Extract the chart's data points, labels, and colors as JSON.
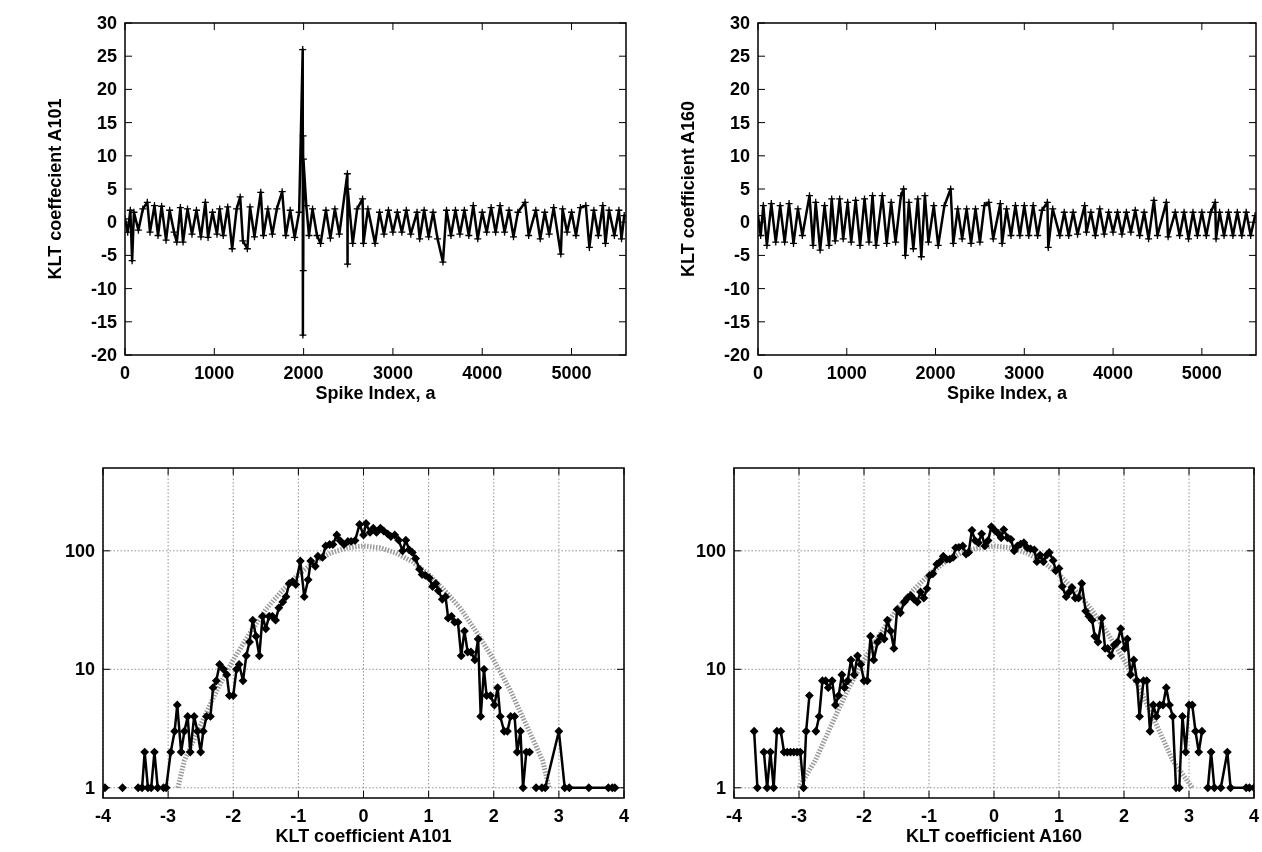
{
  "chart_data": [
    {
      "type": "line",
      "ylabel": "KLT coeffecient A101",
      "xlabel": "Spike Index, a",
      "xlim": [
        0,
        5610
      ],
      "ylim": [
        -20,
        30
      ],
      "xticks": [
        0,
        1000,
        2000,
        3000,
        4000,
        5000
      ],
      "yticks": [
        -20,
        -15,
        -10,
        -5,
        0,
        5,
        10,
        15,
        20,
        25,
        30
      ],
      "grid": false,
      "series": [
        {
          "color": "#000000",
          "marker": "cross",
          "line_style": "solid",
          "x": [
            0,
            30,
            60,
            80,
            100,
            150,
            200,
            250,
            280,
            330,
            370,
            410,
            460,
            500,
            550,
            580,
            620,
            650,
            700,
            750,
            800,
            850,
            900,
            930,
            980,
            1030,
            1060,
            1100,
            1150,
            1200,
            1250,
            1290,
            1320,
            1370,
            1400,
            1450,
            1520,
            1550,
            1600,
            1650,
            1700,
            1760,
            1800,
            1850,
            1900,
            1950,
            1990,
            1992,
            1994,
            1996,
            1998,
            2030,
            2060,
            2100,
            2150,
            2190,
            2250,
            2300,
            2350,
            2400,
            2490,
            2492,
            2494,
            2550,
            2600,
            2660,
            2670,
            2720,
            2800,
            2850,
            2900,
            2950,
            3000,
            3050,
            3100,
            3150,
            3200,
            3270,
            3300,
            3350,
            3400,
            3450,
            3500,
            3560,
            3600,
            3650,
            3700,
            3750,
            3800,
            3850,
            3900,
            3950,
            4000,
            4050,
            4100,
            4150,
            4200,
            4250,
            4300,
            4350,
            4400,
            4480,
            4520,
            4600,
            4650,
            4700,
            4750,
            4800,
            4880,
            4900,
            4950,
            5000,
            5050,
            5100,
            5160,
            5200,
            5250,
            5300,
            5350,
            5380,
            5420,
            5480,
            5530,
            5560,
            5590
          ],
          "values": [
            0.5,
            -1.5,
            1.8,
            -5.8,
            1.5,
            -1.2,
            2,
            3,
            -1.5,
            2.5,
            -2,
            2.4,
            -2.7,
            1.8,
            -1.5,
            -3,
            2.2,
            -3,
            2,
            -1.8,
            1.8,
            -2.2,
            3,
            -2.3,
            1.5,
            -1.8,
            2,
            -2,
            2.3,
            -4,
            2,
            3.8,
            -2.8,
            -4,
            2.3,
            -2.2,
            4.5,
            -2,
            2,
            -1.8,
            2,
            4.6,
            -2,
            1.8,
            -2.3,
            1.5,
            26,
            -17,
            13,
            -7.3,
            9.5,
            2.5,
            -2,
            2,
            -2,
            -3.2,
            1.8,
            -2.4,
            2,
            -1.8,
            7.3,
            -6.3,
            5,
            -3.2,
            2,
            3.5,
            -3.2,
            2,
            -3.2,
            1.5,
            -1.8,
            1.8,
            -1.5,
            1.5,
            -1.5,
            1.8,
            -1.8,
            1.5,
            -2.5,
            1.8,
            -2.2,
            1.5,
            -2.5,
            -6,
            1.8,
            -2,
            1.8,
            -1.8,
            1.8,
            -2,
            2.5,
            -2.5,
            1.5,
            -1.5,
            2.2,
            -1.5,
            2.5,
            -1.5,
            1.8,
            -2.2,
            1.5,
            3,
            -2,
            1.8,
            -2.5,
            1.5,
            -1.8,
            2.2,
            -4.8,
            2,
            -1.5,
            1.5,
            -2,
            2.2,
            2.5,
            -3.8,
            1.8,
            -2,
            2.5,
            -3.2,
            1.8,
            -2,
            1.8,
            -2.5,
            1
          ]
        }
      ]
    },
    {
      "type": "line",
      "ylabel": "KLT coefficient A160",
      "xlabel": "Spike Index, a",
      "xlim": [
        0,
        5610
      ],
      "ylim": [
        -20,
        30
      ],
      "xticks": [
        0,
        1000,
        2000,
        3000,
        4000,
        5000
      ],
      "yticks": [
        -20,
        -15,
        -10,
        -5,
        0,
        5,
        10,
        15,
        20,
        25,
        30
      ],
      "grid": false,
      "series": [
        {
          "color": "#000000",
          "marker": "cross",
          "line_style": "solid",
          "x": [
            0,
            30,
            60,
            100,
            150,
            200,
            250,
            300,
            350,
            400,
            450,
            500,
            580,
            620,
            650,
            700,
            750,
            800,
            830,
            870,
            920,
            960,
            1010,
            1050,
            1100,
            1150,
            1200,
            1250,
            1290,
            1330,
            1400,
            1450,
            1500,
            1550,
            1610,
            1640,
            1660,
            1700,
            1750,
            1800,
            1840,
            1880,
            1920,
            1980,
            2030,
            2100,
            2170,
            2200,
            2250,
            2300,
            2350,
            2400,
            2450,
            2500,
            2550,
            2600,
            2650,
            2730,
            2750,
            2800,
            2850,
            2900,
            2950,
            3000,
            3050,
            3100,
            3150,
            3200,
            3260,
            3270,
            3320,
            3400,
            3450,
            3500,
            3550,
            3600,
            3680,
            3700,
            3750,
            3800,
            3850,
            3900,
            3950,
            4000,
            4050,
            4100,
            4150,
            4200,
            4250,
            4300,
            4350,
            4400,
            4460,
            4500,
            4600,
            4620,
            4700,
            4750,
            4800,
            4850,
            4900,
            4950,
            5000,
            5050,
            5100,
            5150,
            5160,
            5200,
            5250,
            5300,
            5350,
            5400,
            5450,
            5500,
            5550,
            5600
          ],
          "values": [
            1,
            -2,
            2.5,
            -3.5,
            2.8,
            -3,
            2.5,
            -3,
            2.8,
            -3.2,
            2,
            -2,
            4,
            -3.5,
            3,
            -4.2,
            2.5,
            -3.5,
            3.5,
            -2.8,
            3.5,
            -2.5,
            3,
            -3,
            3.3,
            -3.5,
            3.5,
            -3,
            4,
            -3.5,
            4,
            -3.2,
            3,
            -3,
            4,
            5,
            -5,
            3,
            -4,
            3.5,
            -5.2,
            4,
            -3,
            2.5,
            -3.5,
            2.5,
            5,
            -3.2,
            2,
            -2.5,
            2,
            -3.2,
            2,
            -3,
            2.5,
            3,
            -2.5,
            2.8,
            -3.2,
            2,
            -2,
            2.5,
            -2,
            2.5,
            -2,
            2.5,
            -2,
            1.8,
            3,
            -3.8,
            2,
            -2,
            1.5,
            -2,
            1.5,
            -1.8,
            2.5,
            -1.5,
            1.5,
            -2,
            2,
            -1.8,
            1.5,
            -1.5,
            1.5,
            -1.8,
            1.5,
            -1.5,
            1.8,
            -2,
            1.5,
            -2.5,
            3.3,
            -2,
            3,
            -2.2,
            1.5,
            -2,
            1.5,
            -2.5,
            1.5,
            -2,
            1.5,
            -2,
            1.5,
            3,
            -2.5,
            1.5,
            -2,
            1.5,
            -2,
            1.5,
            -2,
            1.5,
            -2,
            1
          ]
        }
      ]
    },
    {
      "type": "line",
      "xlabel": "KLT coefficient A101",
      "xlim": [
        -4,
        4
      ],
      "ylim": [
        0.82,
        500
      ],
      "xticks": [
        -4,
        -3,
        -2,
        -1,
        0,
        1,
        2,
        3,
        4
      ],
      "yticks": [
        1,
        10,
        100
      ],
      "grid": true,
      "log": true,
      "series": [
        {
          "color": "#999999",
          "marker": "none",
          "line_style": "dotted",
          "x": [
            -2.85,
            -2.75,
            -2.5,
            -2.25,
            -2,
            -1.75,
            -1.5,
            -1.25,
            -1,
            -0.75,
            -0.5,
            -0.25,
            0,
            0.25,
            0.5,
            0.75,
            1,
            1.25,
            1.5,
            1.75,
            2,
            2.25,
            2.5,
            2.75,
            2.85
          ],
          "values": [
            1,
            1.7,
            3.4,
            6.7,
            12,
            20,
            32,
            46,
            63,
            81,
            96,
            106,
            110,
            106,
            96,
            81,
            63,
            46,
            32,
            20,
            12,
            6.7,
            3.4,
            1.7,
            1
          ]
        },
        {
          "color": "#000000",
          "marker": "diamond",
          "line_style": "solid",
          "x": [
            -3.97,
            -3.85,
            -3.7,
            -3.58,
            -3.46,
            -3.4,
            -3.36,
            -3.31,
            -3.26,
            -3.21,
            -3.16,
            -3.11,
            -3.07,
            -3.03,
            -2.96,
            -2.9,
            -2.86,
            -2.8,
            -2.75,
            -2.7,
            -2.66,
            -2.6,
            -2.55,
            -2.5,
            -2.46,
            -2.41,
            -2.35,
            -2.31,
            -2.26,
            -2.21,
            -2.15,
            -2.1,
            -2.06,
            -2,
            -1.95,
            -1.91,
            -1.85,
            -1.8,
            -1.75,
            -1.7,
            -1.65,
            -1.6,
            -1.55,
            -1.5,
            -1.45,
            -1.4,
            -1.35,
            -1.3,
            -1.24,
            -1.19,
            -1.14,
            -1.09,
            -1.04,
            -0.97,
            -0.91,
            -0.85,
            -0.81,
            -0.74,
            -0.7,
            -0.63,
            -0.58,
            -0.52,
            -0.47,
            -0.41,
            -0.36,
            -0.3,
            -0.24,
            -0.19,
            -0.13,
            -0.06,
            0,
            0.04,
            0.1,
            0.15,
            0.2,
            0.26,
            0.31,
            0.37,
            0.42,
            0.48,
            0.54,
            0.6,
            0.65,
            0.7,
            0.75,
            0.8,
            0.86,
            0.9,
            0.95,
            1.01,
            1.06,
            1.11,
            1.15,
            1.21,
            1.26,
            1.3,
            1.35,
            1.4,
            1.45,
            1.5,
            1.55,
            1.6,
            1.65,
            1.71,
            1.76,
            1.8,
            1.85,
            1.89,
            1.95,
            2.01,
            2.06,
            2.1,
            2.16,
            2.21,
            2.26,
            2.32,
            2.36,
            2.41,
            2.45,
            2.5,
            2.55,
            2.6,
            2.65,
            2.74,
            2.79,
            3,
            3.09,
            3.16,
            3.46,
            3.76,
            3.82,
            3.86
          ],
          "values": [
            1,
            null,
            1,
            null,
            1,
            1,
            2,
            1,
            1,
            2,
            1,
            null,
            1,
            1,
            2,
            3,
            5,
            2,
            3,
            4,
            2,
            4,
            3,
            2,
            3,
            4,
            4,
            7,
            8,
            11,
            10,
            9,
            6,
            6,
            10,
            11,
            8,
            13,
            17,
            26,
            19,
            13,
            28,
            22,
            28,
            28,
            26,
            33,
            37,
            41,
            53,
            55,
            52,
            82,
            41,
            57,
            82,
            74,
            90,
            88,
            110,
            113,
            113,
            136,
            122,
            113,
            120,
            120,
            122,
            167,
            136,
            170,
            143,
            155,
            143,
            155,
            147,
            139,
            132,
            136,
            123,
            100,
            123,
            102,
            97,
            86,
            70,
            63,
            62,
            59,
            50,
            53,
            46,
            39,
            41,
            27,
            28,
            25,
            25,
            13,
            21,
            14,
            14,
            12,
            18,
            4,
            10,
            6,
            6,
            5,
            7,
            4,
            3,
            3,
            4,
            4,
            2,
            3,
            1,
            2,
            2,
            null,
            1,
            1,
            1,
            3,
            1,
            1,
            1,
            1,
            1,
            1
          ]
        }
      ]
    },
    {
      "type": "line",
      "xlabel": "KLT coefficient A160",
      "xlim": [
        -4,
        4
      ],
      "ylim": [
        0.82,
        500
      ],
      "xticks": [
        -4,
        -3,
        -2,
        -1,
        0,
        1,
        2,
        3,
        4
      ],
      "yticks": [
        1,
        10,
        100
      ],
      "grid": true,
      "log": true,
      "series": [
        {
          "color": "#999999",
          "marker": "none",
          "line_style": "dotted",
          "x": [
            -3,
            -2.75,
            -2.5,
            -2.25,
            -2,
            -1.75,
            -1.5,
            -1.25,
            -1,
            -0.75,
            -0.5,
            -0.25,
            0,
            0.25,
            0.5,
            0.75,
            1,
            1.25,
            1.5,
            1.75,
            2,
            2.25,
            2.5,
            2.75,
            3.05
          ],
          "values": [
            1,
            1.7,
            3.4,
            6.7,
            12,
            20,
            32,
            46,
            63,
            81,
            96,
            106,
            110,
            106,
            96,
            81,
            63,
            46,
            32,
            20,
            12,
            6.7,
            3.4,
            1.7,
            1
          ]
        },
        {
          "color": "#000000",
          "marker": "diamond",
          "line_style": "solid",
          "x": [
            -3.69,
            -3.64,
            -3.59,
            -3.54,
            -3.49,
            -3.44,
            -3.39,
            -3.34,
            -3.28,
            -3.23,
            -3.18,
            -3.13,
            -3.08,
            -3.03,
            -2.98,
            -2.93,
            -2.89,
            -2.84,
            -2.79,
            -2.74,
            -2.69,
            -2.64,
            -2.59,
            -2.55,
            -2.49,
            -2.44,
            -2.39,
            -2.34,
            -2.3,
            -2.25,
            -2.2,
            -2.15,
            -2.1,
            -2.05,
            -2,
            -1.95,
            -1.9,
            -1.85,
            -1.79,
            -1.74,
            -1.69,
            -1.64,
            -1.59,
            -1.54,
            -1.49,
            -1.44,
            -1.38,
            -1.33,
            -1.28,
            -1.23,
            -1.18,
            -1.13,
            -1.08,
            -1.03,
            -0.99,
            -0.94,
            -0.88,
            -0.83,
            -0.78,
            -0.73,
            -0.68,
            -0.63,
            -0.59,
            -0.54,
            -0.48,
            -0.43,
            -0.39,
            -0.34,
            -0.29,
            -0.24,
            -0.19,
            -0.14,
            -0.09,
            -0.04,
            0.01,
            0.06,
            0.11,
            0.15,
            0.21,
            0.26,
            0.31,
            0.36,
            0.41,
            0.46,
            0.51,
            0.56,
            0.62,
            0.66,
            0.71,
            0.76,
            0.81,
            0.85,
            0.91,
            0.95,
            1,
            1.05,
            1.11,
            1.16,
            1.2,
            1.25,
            1.3,
            1.35,
            1.41,
            1.46,
            1.51,
            1.55,
            1.6,
            1.66,
            1.71,
            1.75,
            1.8,
            1.85,
            1.9,
            1.95,
            2.01,
            2.05,
            2.1,
            2.15,
            2.2,
            2.24,
            2.3,
            2.35,
            2.4,
            2.45,
            2.5,
            2.55,
            2.6,
            2.65,
            2.7,
            2.75,
            2.8,
            2.85,
            2.9,
            2.95,
            3,
            3.05,
            3.1,
            3.15,
            3.2,
            3.24,
            3.29,
            3.34,
            3.39,
            3.44,
            3.49,
            3.59,
            3.64,
            3.88,
            3.93,
            4
          ],
          "values": [
            3,
            1,
            null,
            2,
            1,
            2,
            1,
            3,
            3,
            2,
            2,
            2,
            2,
            2,
            2,
            1,
            3,
            6,
            null,
            3,
            4,
            8,
            8,
            7,
            8,
            5,
            6,
            9,
            7,
            8,
            12,
            9,
            13,
            11,
            8,
            8,
            19,
            12,
            17,
            19,
            18,
            26,
            21,
            15,
            32,
            30,
            37,
            40,
            42,
            39,
            37,
            45,
            40,
            48,
            62,
            64,
            77,
            81,
            90,
            85,
            85,
            88,
            106,
            107,
            110,
            94,
            97,
            149,
            122,
            117,
            139,
            110,
            122,
            160,
            149,
            141,
            129,
            151,
            129,
            125,
            100,
            110,
            114,
            117,
            106,
            104,
            102,
            81,
            92,
            81,
            92,
            97,
            83,
            68,
            71,
            50,
            41,
            45,
            49,
            40,
            40,
            53,
            31,
            28,
            26,
            19,
            17,
            27,
            15,
            15,
            13,
            16,
            17,
            22,
            15,
            18,
            9,
            12,
            8,
            4,
            8,
            8,
            3,
            5,
            4,
            5,
            5,
            7,
            5,
            4,
            1,
            1,
            4,
            2,
            5,
            5,
            3,
            2,
            3,
            null,
            1,
            2,
            1,
            null,
            1,
            2,
            1,
            1,
            1,
            1
          ]
        }
      ]
    }
  ]
}
